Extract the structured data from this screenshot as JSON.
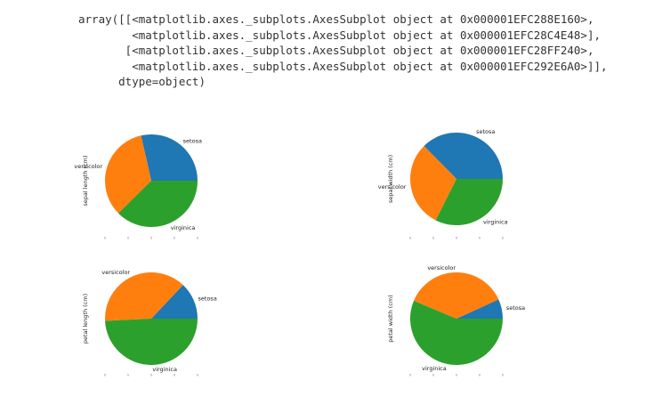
{
  "output": {
    "lines": [
      "array([[<matplotlib.axes._subplots.AxesSubplot object at 0x000001EFC288E160>,",
      "        <matplotlib.axes._subplots.AxesSubplot object at 0x000001EFC28C4E48>],",
      "       [<matplotlib.axes._subplots.AxesSubplot object at 0x000001EFC28FF240>,",
      "        <matplotlib.axes._subplots.AxesSubplot object at 0x000001EFC292E6A0>]],",
      "      dtype=object)"
    ]
  },
  "colors": {
    "setosa": "#1f77b4",
    "versicolor": "#ff7f0e",
    "virginica": "#2ca02c"
  },
  "chart_data": [
    {
      "type": "pie",
      "ylabel": "sepal length (cm)",
      "categories": [
        "setosa",
        "versicolor",
        "virginica"
      ],
      "values": [
        250.3,
        296.8,
        329.4
      ],
      "colors": [
        "#1f77b4",
        "#ff7f0e",
        "#2ca02c"
      ]
    },
    {
      "type": "pie",
      "ylabel": "sepal width (cm)",
      "categories": [
        "setosa",
        "versicolor",
        "virginica"
      ],
      "values": [
        171.4,
        138.5,
        148.7
      ],
      "colors": [
        "#1f77b4",
        "#ff7f0e",
        "#2ca02c"
      ]
    },
    {
      "type": "pie",
      "ylabel": "petal length (cm)",
      "categories": [
        "setosa",
        "versicolor",
        "virginica"
      ],
      "values": [
        73.1,
        213.0,
        277.6
      ],
      "colors": [
        "#1f77b4",
        "#ff7f0e",
        "#2ca02c"
      ]
    },
    {
      "type": "pie",
      "ylabel": "petal width (cm)",
      "categories": [
        "setosa",
        "versicolor",
        "virginica"
      ],
      "values": [
        12.3,
        66.3,
        101.3
      ],
      "colors": [
        "#1f77b4",
        "#ff7f0e",
        "#2ca02c"
      ]
    }
  ]
}
